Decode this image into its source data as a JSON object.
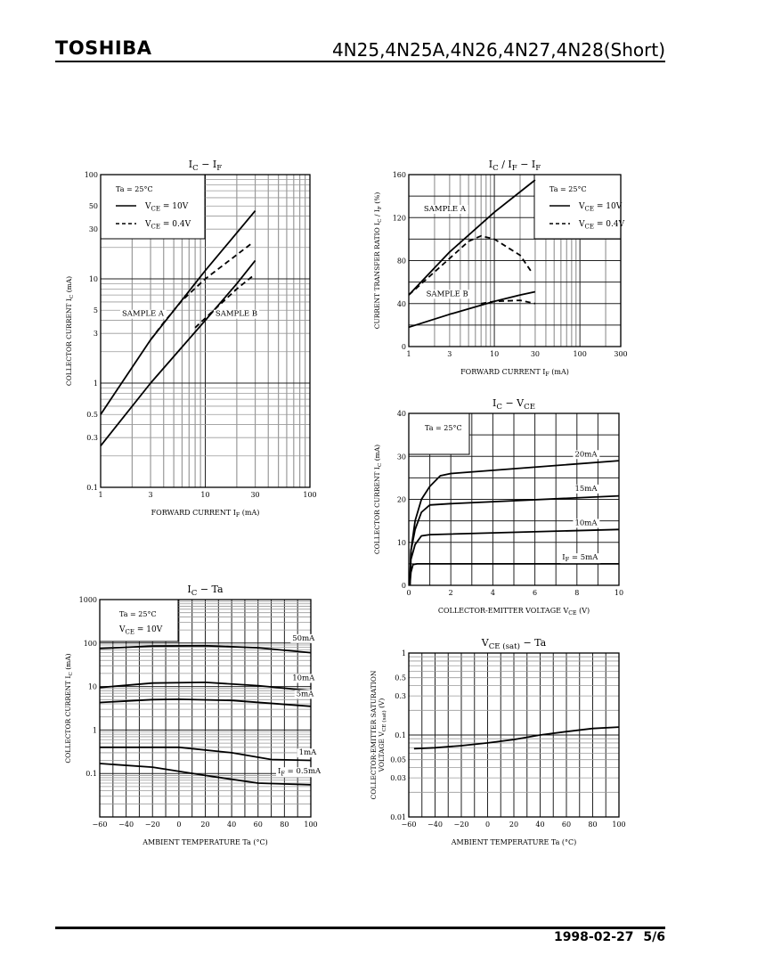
{
  "header": {
    "brand": "TOSHIBA",
    "title": "4N25,4N25A,4N26,4N27,4N28(Short)"
  },
  "footer": {
    "date": "1998-02-27",
    "page": "5/6"
  },
  "colors": {
    "ink": "#000000",
    "grid_major": "#222222",
    "grid_minor": "#9a9a9a"
  },
  "chart_data": [
    {
      "type": "line",
      "title": "I_{C} − I_{F}",
      "xlabel": "FORWARD CURRENT   I_{F}   (mA)",
      "ylabel": "COLLECTOR CURRENT   I_{C}   (mA)",
      "xscale": "log",
      "yscale": "log",
      "xlim": [
        1,
        100
      ],
      "ylim": [
        0.1,
        100
      ],
      "xticks": [
        1,
        3,
        10,
        30,
        100
      ],
      "xtick_labels": [
        "1",
        "3",
        "10",
        "30",
        "100"
      ],
      "yticks": [
        0.1,
        0.3,
        0.5,
        1,
        3,
        5,
        10,
        30,
        50,
        100
      ],
      "ytick_labels": [
        "0.1",
        "0.3",
        "0.5",
        "1",
        "3",
        "5",
        "10",
        "30",
        "50",
        "100"
      ],
      "legend": {
        "condition": "Ta = 25°C",
        "entries": [
          {
            "label": "V_{CE} = 10V",
            "style": "solid"
          },
          {
            "label": "V_{CE} = 0.4V",
            "style": "dashed"
          }
        ]
      },
      "series": [
        {
          "name": "Sample A, VCE=10V",
          "style": "solid",
          "x": [
            1,
            3,
            10,
            30
          ],
          "y": [
            0.5,
            2.6,
            12,
            45
          ]
        },
        {
          "name": "Sample A, VCE=0.4V",
          "style": "dashed",
          "x": [
            3,
            4,
            6,
            10,
            28
          ],
          "y": [
            2.6,
            3.8,
            6.2,
            10,
            22
          ]
        },
        {
          "name": "Sample B, VCE=10V",
          "style": "solid",
          "x": [
            1,
            3,
            10,
            20,
            30
          ],
          "y": [
            0.25,
            1,
            4,
            9,
            15
          ]
        },
        {
          "name": "Sample B, VCE=0.4V",
          "style": "dashed",
          "x": [
            8,
            10,
            20,
            28
          ],
          "y": [
            3.4,
            4.2,
            8,
            10.5
          ]
        }
      ],
      "annotations": [
        {
          "text": "SAMPLE A",
          "x": 1.6,
          "y": 4.4
        },
        {
          "text": "SAMPLE B",
          "x": 12.5,
          "y": 4.4
        }
      ]
    },
    {
      "type": "line",
      "title": "I_{C} / I_{F}  −  I_{F}",
      "xlabel": "FORWARD CURRENT   I_{F}   (mA)",
      "ylabel": "CURRENT TRANSFER RATIO   I_{C} / I_{F}   (%)",
      "xscale": "log",
      "yscale": "linear",
      "xlim": [
        1,
        300
      ],
      "ylim": [
        0,
        160
      ],
      "xticks": [
        1,
        3,
        10,
        30,
        100,
        300
      ],
      "xtick_labels": [
        "1",
        "3",
        "10",
        "30",
        "100",
        "300"
      ],
      "yticks": [
        0,
        40,
        80,
        120,
        160
      ],
      "ytick_labels": [
        "0",
        "40",
        "80",
        "120",
        "160"
      ],
      "ygrid_step": 20,
      "legend": {
        "condition": "Ta = 25°C",
        "entries": [
          {
            "label": "V_{CE} = 10V",
            "style": "solid"
          },
          {
            "label": "V_{CE} = 0.4V",
            "style": "dashed"
          }
        ]
      },
      "series": [
        {
          "name": "Sample A, VCE=10V",
          "style": "solid",
          "x": [
            1,
            3,
            10,
            30
          ],
          "y": [
            48,
            88,
            125,
            155
          ]
        },
        {
          "name": "Sample A, VCE=0.4V",
          "style": "dashed",
          "x": [
            1,
            3,
            5,
            7,
            10,
            20,
            28
          ],
          "y": [
            48,
            82,
            98,
            103,
            100,
            85,
            68
          ]
        },
        {
          "name": "Sample B, VCE=10V",
          "style": "solid",
          "x": [
            1,
            3,
            10,
            20,
            30
          ],
          "y": [
            18,
            30,
            42,
            48,
            51
          ]
        },
        {
          "name": "Sample B, VCE=0.4V",
          "style": "dashed",
          "x": [
            7,
            10,
            20,
            30
          ],
          "y": [
            40,
            42,
            43,
            40
          ]
        }
      ],
      "annotations": [
        {
          "text": "SAMPLE A",
          "x": 1.5,
          "y": 126
        },
        {
          "text": "SAMPLE B",
          "x": 1.6,
          "y": 47
        }
      ]
    },
    {
      "type": "line",
      "title": "I_{C}  −  V_{CE}",
      "xlabel": "COLLECTOR-EMITTER VOLTAGE    V_{CE}    (V)",
      "ylabel": "COLLECTOR CURRENT   I_{C}   (mA)",
      "xscale": "linear",
      "yscale": "linear",
      "xlim": [
        0,
        10
      ],
      "ylim": [
        0,
        40
      ],
      "xticks": [
        0,
        2,
        4,
        6,
        8,
        10
      ],
      "xtick_labels": [
        "0",
        "2",
        "4",
        "6",
        "8",
        "10"
      ],
      "xgrid_step": 1,
      "yticks": [
        0,
        10,
        20,
        30,
        40
      ],
      "ytick_labels": [
        "0",
        "10",
        "20",
        "30",
        "40"
      ],
      "ygrid_step": 5,
      "legend": {
        "condition": "Ta = 25°C",
        "entries": []
      },
      "series": [
        {
          "name": "IF=20mA",
          "style": "solid",
          "x": [
            0.05,
            0.1,
            0.3,
            0.6,
            1,
            1.5,
            2,
            10
          ],
          "y": [
            0,
            8,
            15,
            20,
            23,
            25.5,
            26,
            29
          ]
        },
        {
          "name": "IF=15mA",
          "style": "solid",
          "x": [
            0.05,
            0.1,
            0.3,
            0.6,
            1,
            2,
            10
          ],
          "y": [
            0,
            8,
            13,
            17,
            18.7,
            19,
            20.8
          ]
        },
        {
          "name": "IF=10mA",
          "style": "solid",
          "x": [
            0.05,
            0.1,
            0.3,
            0.6,
            1,
            10
          ],
          "y": [
            0,
            6,
            9.5,
            11.5,
            11.8,
            13
          ]
        },
        {
          "name": "IF=5mA",
          "style": "solid",
          "x": [
            0.05,
            0.1,
            0.2,
            0.4,
            10
          ],
          "y": [
            0,
            3,
            4.8,
            5,
            5
          ]
        }
      ],
      "annotations": [
        {
          "text": "20mA",
          "x": 7.9,
          "y": 30
        },
        {
          "text": "15mA",
          "x": 7.9,
          "y": 22
        },
        {
          "text": "10mA",
          "x": 7.9,
          "y": 14
        },
        {
          "text": "I_{F} = 5mA",
          "x": 7.3,
          "y": 6
        }
      ]
    },
    {
      "type": "line",
      "title": "I_{C}  −  Ta",
      "xlabel": "AMBIENT TEMPERATURE   Ta   (°C)",
      "ylabel": "COLLECTOR CURRENT   I_{C}   (mA)",
      "xscale": "linear",
      "yscale": "log",
      "xlim": [
        -60,
        100
      ],
      "ylim": [
        0.01,
        1000
      ],
      "xticks": [
        -60,
        -40,
        -20,
        0,
        20,
        40,
        60,
        80,
        100
      ],
      "xtick_labels": [
        "−60",
        "−40",
        "−20",
        "0",
        "20",
        "40",
        "60",
        "80",
        "100"
      ],
      "xgrid_step": 10,
      "yticks": [
        0.1,
        1,
        10,
        100,
        1000
      ],
      "ytick_labels": [
        "0.1",
        "1",
        "10",
        "100",
        "1000"
      ],
      "legend": {
        "condition": "Ta = 25°C",
        "entries": [
          {
            "label": "V_{CE} = 10V",
            "style": "none"
          }
        ]
      },
      "series": [
        {
          "name": "IF=50mA",
          "style": "solid",
          "x": [
            -60,
            -20,
            20,
            60,
            100
          ],
          "y": [
            75,
            85,
            87,
            78,
            60
          ]
        },
        {
          "name": "IF=10mA",
          "style": "solid",
          "x": [
            -60,
            -20,
            20,
            60,
            100
          ],
          "y": [
            9.5,
            12,
            12.5,
            10.5,
            8
          ]
        },
        {
          "name": "IF=5mA",
          "style": "solid",
          "x": [
            -60,
            -20,
            0,
            40,
            100
          ],
          "y": [
            4.3,
            5,
            5.1,
            4.8,
            3.5
          ]
        },
        {
          "name": "IF=1mA",
          "style": "solid",
          "x": [
            -60,
            0,
            40,
            70,
            100
          ],
          "y": [
            0.4,
            0.4,
            0.3,
            0.21,
            0.2
          ]
        },
        {
          "name": "IF=0.5mA",
          "style": "solid",
          "x": [
            -60,
            -20,
            20,
            60,
            100
          ],
          "y": [
            0.17,
            0.14,
            0.09,
            0.06,
            0.055
          ]
        }
      ],
      "annotations": [
        {
          "text": "50mA",
          "x": 86,
          "y": 115
        },
        {
          "text": "10mA",
          "x": 86,
          "y": 14
        },
        {
          "text": "5mA",
          "x": 89,
          "y": 6
        },
        {
          "text": "1mA",
          "x": 91,
          "y": 0.27
        },
        {
          "text": "I_{F} = 0.5mA",
          "x": 75,
          "y": 0.1
        }
      ]
    },
    {
      "type": "line",
      "title": "V_{CE (sat)}  −  Ta",
      "xlabel": "AMBIENT TEMPERATURE   Ta   (°C)",
      "ylabel": "COLLECTOR-EMITTER SATURATION",
      "ylabel2": "VOLTAGE   V_{CE (sat)}   (V)",
      "xscale": "linear",
      "yscale": "log",
      "xlim": [
        -60,
        100
      ],
      "ylim": [
        0.01,
        1
      ],
      "xticks": [
        -60,
        -40,
        -20,
        0,
        20,
        40,
        60,
        80,
        100
      ],
      "xtick_labels": [
        "−60",
        "−40",
        "−20",
        "0",
        "20",
        "40",
        "60",
        "80",
        "100"
      ],
      "xgrid_step": 10,
      "yticks": [
        0.01,
        0.03,
        0.05,
        0.1,
        0.3,
        0.5,
        1
      ],
      "ytick_labels": [
        "0.01",
        "0.03",
        "0.05",
        "0.1",
        "0.3",
        "0.5",
        "1"
      ],
      "series": [
        {
          "name": "VCE(sat)",
          "style": "solid",
          "x": [
            -56,
            -40,
            -20,
            0,
            20,
            40,
            60,
            80,
            100
          ],
          "y": [
            0.068,
            0.07,
            0.074,
            0.08,
            0.088,
            0.1,
            0.11,
            0.12,
            0.125
          ]
        }
      ],
      "annotations": []
    }
  ]
}
